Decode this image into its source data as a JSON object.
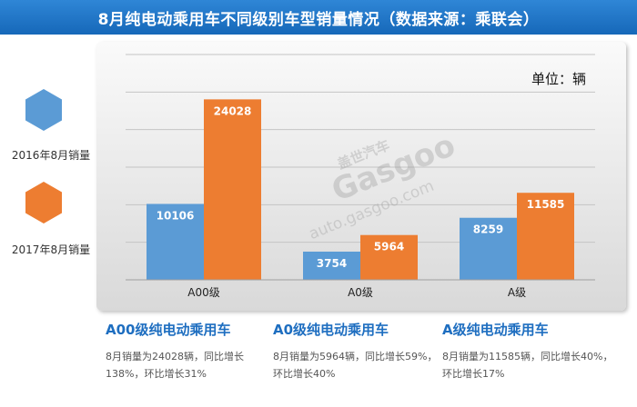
{
  "title": "8月纯电动乘用车不同级别车型销量情况（数据来源：乘联会）",
  "legend": [
    {
      "label": "2016年8月销量",
      "color": "#5b9bd5"
    },
    {
      "label": "2017年8月销量",
      "color": "#ed7d31"
    }
  ],
  "unit_label": "单位：辆",
  "watermark": {
    "brand_cn": "盖世汽车",
    "brand_en": "Gasgoo",
    "url": "auto.gasgoo.com"
  },
  "chart_data": {
    "type": "bar",
    "categories": [
      "A00级",
      "A0级",
      "A级"
    ],
    "series": [
      {
        "name": "2016年8月销量",
        "values": [
          10106,
          3754,
          8259
        ],
        "color": "#5b9bd5"
      },
      {
        "name": "2017年8月销量",
        "values": [
          24028,
          5964,
          11585
        ],
        "color": "#ed7d31"
      }
    ],
    "ylim": [
      0,
      30000
    ],
    "grid": true
  },
  "summaries": [
    {
      "heading": "A00级纯电动乘用车",
      "text": "8月销量为24028辆，同比增长138%，环比增长31%"
    },
    {
      "heading": "A0级纯电动乘用车",
      "text": "8月销量为5964辆，同比增长59%，环比增长40%"
    },
    {
      "heading": "A级纯电动乘用车",
      "text": "8月销量为11585辆，同比增长40%，环比增长17%"
    }
  ]
}
